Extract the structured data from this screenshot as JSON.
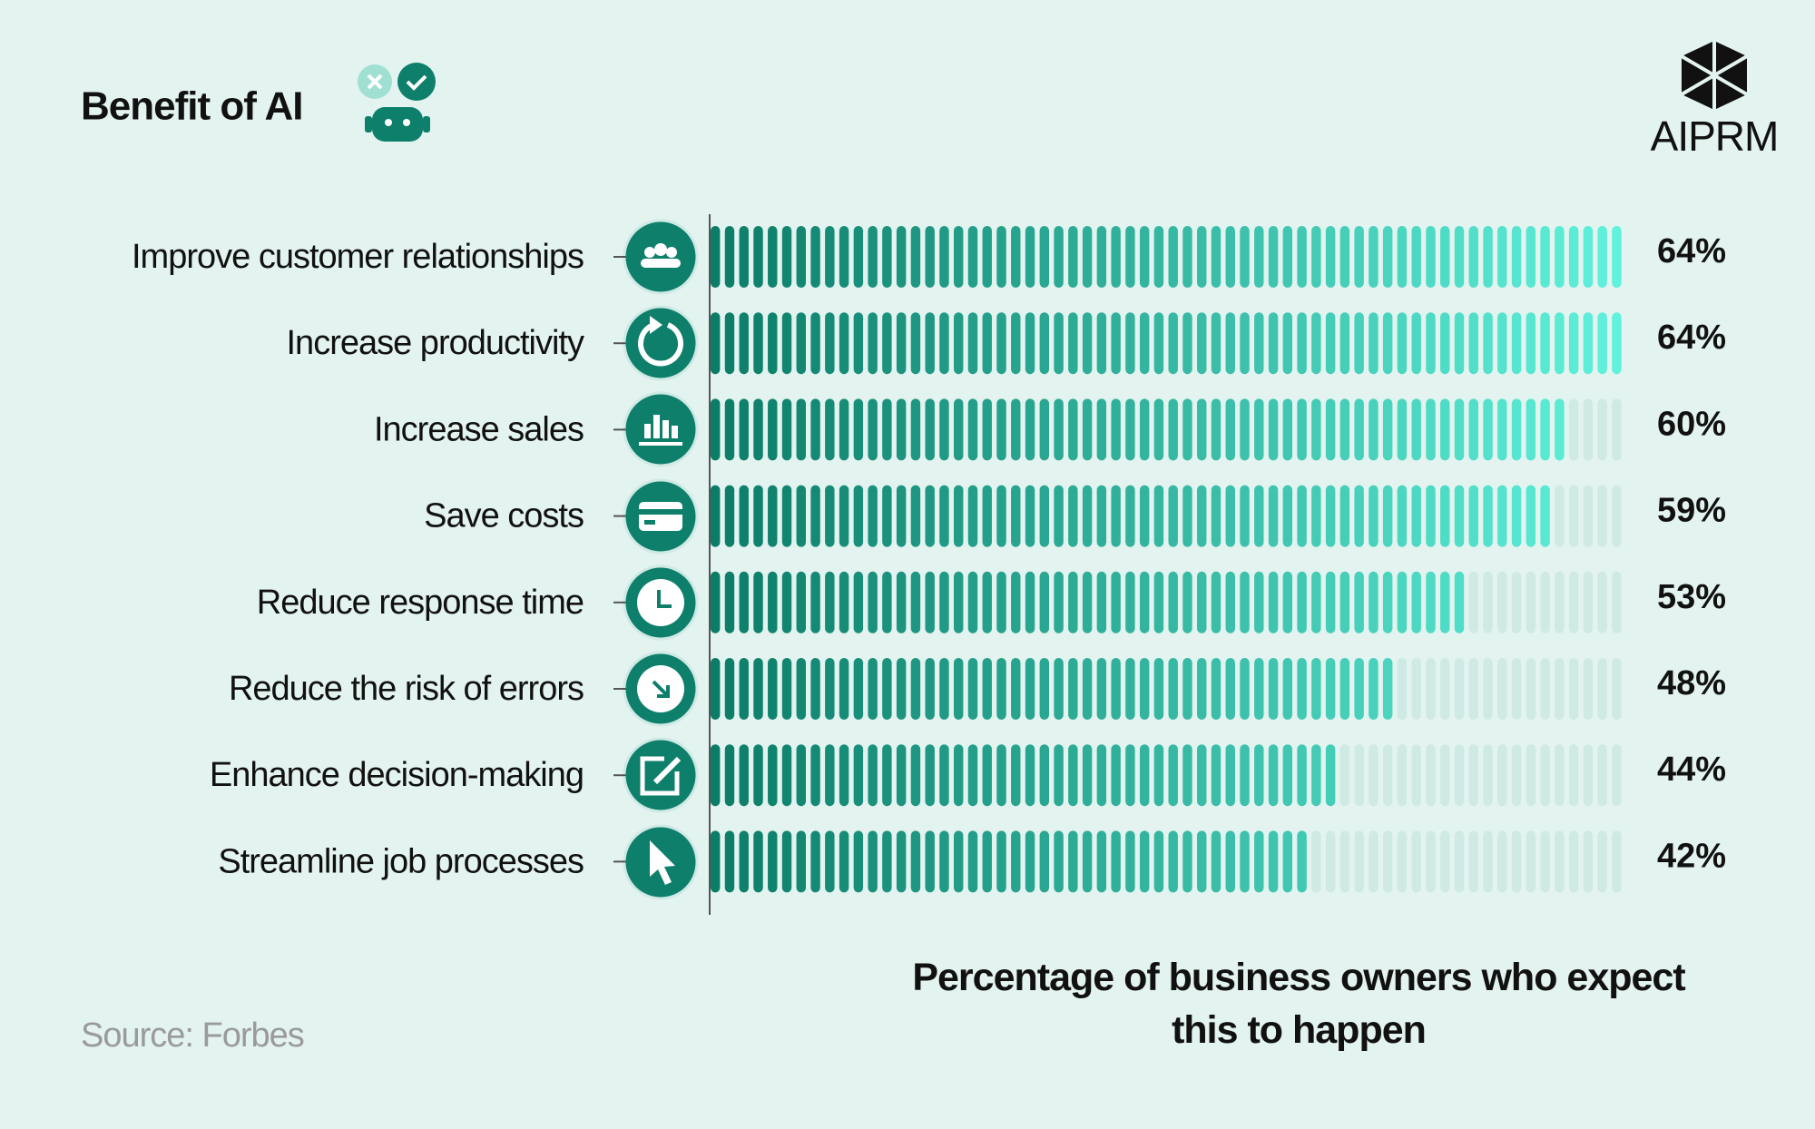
{
  "chart_data": {
    "type": "bar",
    "orientation": "horizontal",
    "title": "Benefit of AI",
    "logo": "AIPRM",
    "source": "Source: Forbes",
    "x_label": "Percentage of business owners who expect this to happen",
    "categories": [
      "Improve customer relationships",
      "Increase productivity",
      "Increase sales",
      "Save costs",
      "Reduce response time",
      "Reduce the risk of errors",
      "Enhance decision-making",
      "Streamline job processes"
    ],
    "values": [
      64,
      64,
      60,
      59,
      53,
      48,
      44,
      42
    ],
    "value_labels": [
      "64%",
      "64%",
      "60%",
      "59%",
      "53%",
      "48%",
      "44%",
      "42%"
    ],
    "xlim": [
      0,
      64
    ],
    "color": [
      "#0b7c67",
      "#5ff2dc"
    ]
  }
}
